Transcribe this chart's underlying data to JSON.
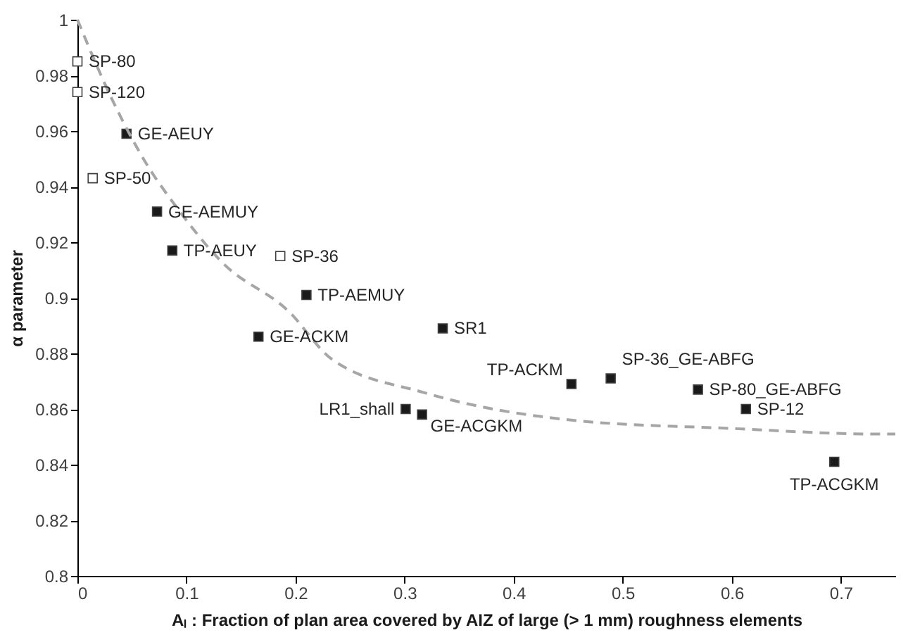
{
  "chart_data": {
    "type": "scatter",
    "xlabel": "Aₗ : Fraction of plan area covered by AIZ of large (> 1 mm) roughness elements",
    "ylabel": "α parameter",
    "xlim": [
      0,
      0.75
    ],
    "xticks": [
      0,
      0.1,
      0.2,
      0.3,
      0.4,
      0.5,
      0.6,
      0.7
    ],
    "ylim": [
      0.8,
      1
    ],
    "yticks": [
      0.8,
      0.82,
      0.84,
      0.86,
      0.88,
      0.9,
      0.92,
      0.94,
      0.96,
      0.98,
      1
    ],
    "grid": false,
    "marker": "square",
    "series": [
      {
        "color": "#ffffff",
        "x": [
          0,
          0,
          0.014,
          0.186
        ],
        "values": [
          0.985,
          0.974,
          0.943,
          0.915
        ]
      },
      {
        "color": "#1a1a1a",
        "x": [
          0.045,
          0.073,
          0.087,
          0.21,
          0.166,
          0.335,
          0.453,
          0.489,
          0.569,
          0.613,
          0.301,
          0.316,
          0.694
        ],
        "values": [
          0.959,
          0.931,
          0.917,
          0.901,
          0.886,
          0.889,
          0.869,
          0.871,
          0.867,
          0.86,
          0.86,
          0.858,
          0.841
        ]
      },
      {
        "type": "line",
        "color": "#a6a6a6",
        "line_style": "dashed",
        "marker": "none",
        "x": [
          0,
          0.031,
          0.062,
          0.092,
          0.132,
          0.194,
          0.233,
          0.317,
          0.453,
          0.6,
          0.734,
          0.75
        ],
        "values": [
          1,
          0.972,
          0.949,
          0.932,
          0.913,
          0.895,
          0.878,
          0.866,
          0.856,
          0.853,
          0.851,
          0.851
        ]
      }
    ],
    "annotations": [
      {
        "text": "SP-80",
        "x": 0,
        "y": 0.985
      },
      {
        "text": "SP-120",
        "x": 0,
        "y": 0.974
      },
      {
        "text": "SP-50",
        "x": 0.014,
        "y": 0.943
      },
      {
        "text": "SP-36",
        "x": 0.186,
        "y": 0.915
      },
      {
        "text": "GE-AEUY",
        "x": 0.045,
        "y": 0.959
      },
      {
        "text": "GE-AEMUY",
        "x": 0.073,
        "y": 0.931
      },
      {
        "text": "TP-AEUY",
        "x": 0.087,
        "y": 0.917
      },
      {
        "text": "TP-AEMUY",
        "x": 0.21,
        "y": 0.901
      },
      {
        "text": "GE-ACKM",
        "x": 0.166,
        "y": 0.886
      },
      {
        "text": "SR1",
        "x": 0.335,
        "y": 0.889
      },
      {
        "text": "TP-ACKM",
        "x": 0.453,
        "y": 0.869
      },
      {
        "text": "SP-36_GE-ABFG",
        "x": 0.489,
        "y": 0.871
      },
      {
        "text": "SP-80_GE-ABFG",
        "x": 0.569,
        "y": 0.867
      },
      {
        "text": "SP-12",
        "x": 0.613,
        "y": 0.86
      },
      {
        "text": "LR1_shall",
        "x": 0.301,
        "y": 0.86
      },
      {
        "text": "GE-ACGKM",
        "x": 0.316,
        "y": 0.858
      },
      {
        "text": "TP-ACGKM",
        "x": 0.694,
        "y": 0.841
      }
    ]
  }
}
